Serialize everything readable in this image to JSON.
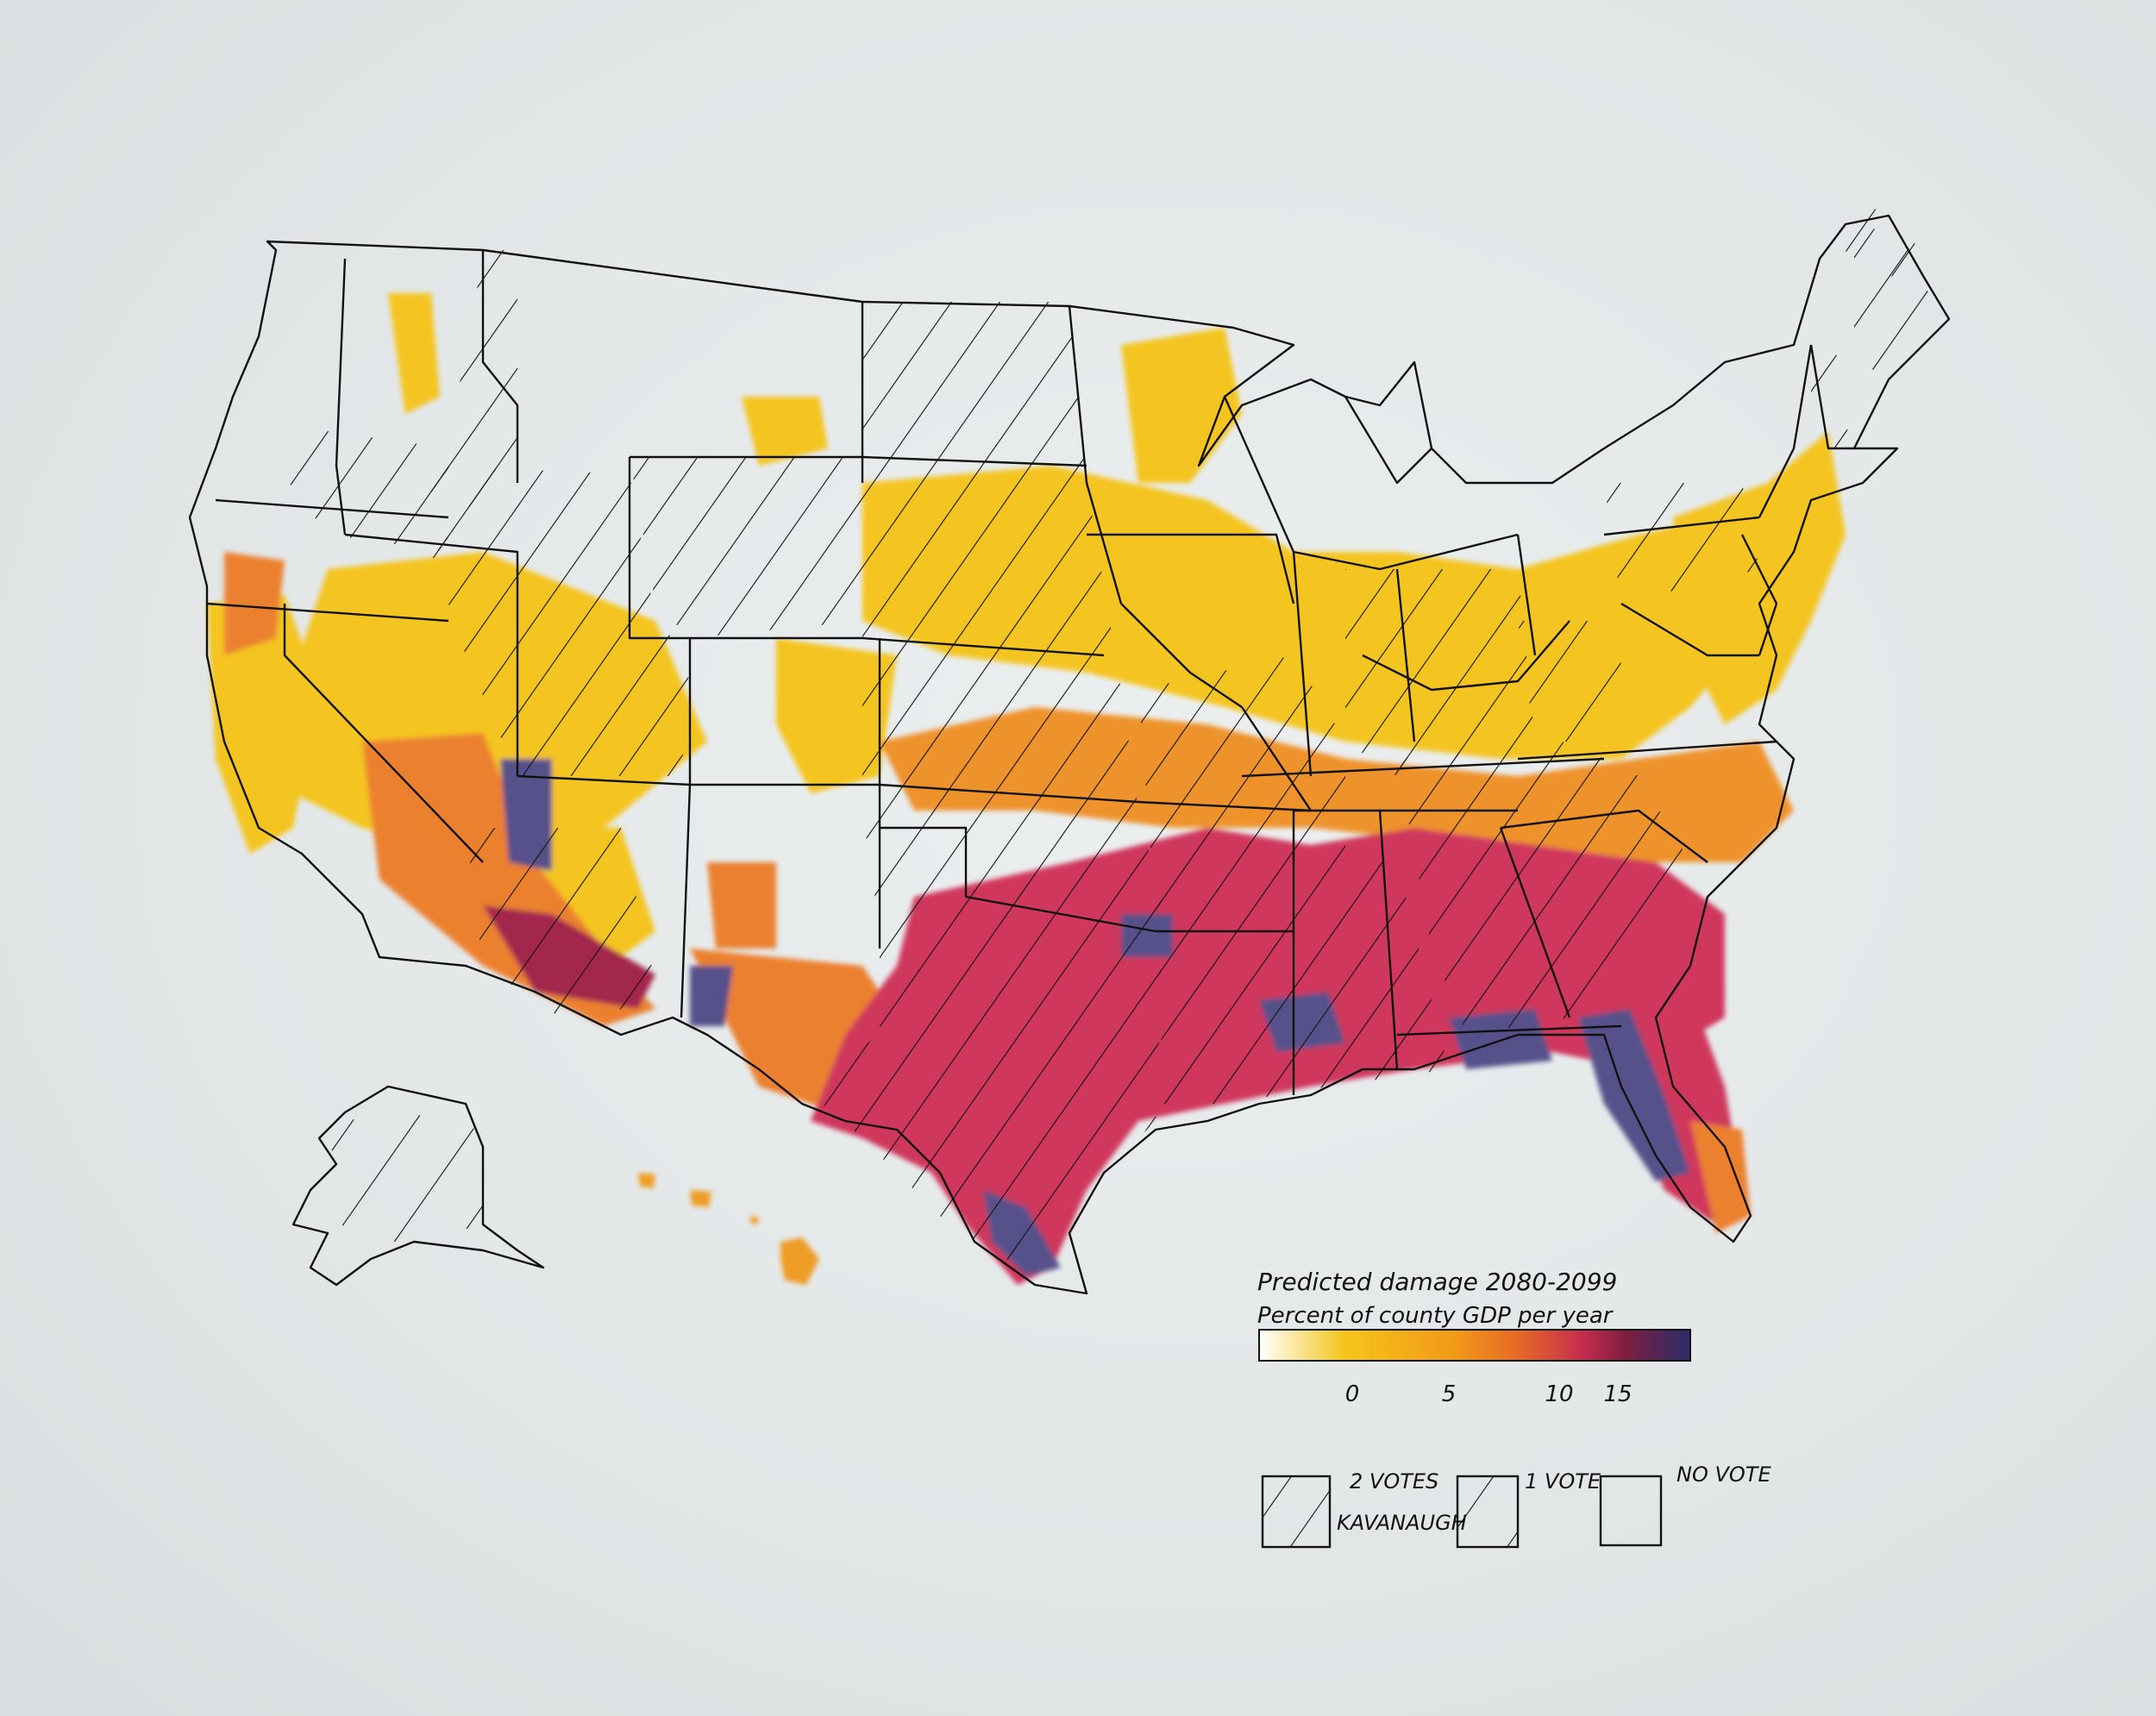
{
  "legend": {
    "title": "Predicted damage 2080-2099",
    "subtitle": "Percent of county GDP per year",
    "scale_ticks": [
      "0",
      "5",
      "10",
      "15"
    ],
    "scale_colors": [
      "#ffffff",
      "#f3c21a",
      "#f2a018",
      "#e8741f",
      "#c83050",
      "#8a1f40",
      "#2f2f6e"
    ],
    "votes": {
      "two_votes_line1": "2 VOTES",
      "two_votes_line2": "KAVANAUGH",
      "one_vote": "1 VOTE",
      "no_vote": "NO VOTE"
    }
  },
  "colors": {
    "yellow": "#f5c316",
    "gold": "#f2a91b",
    "orange": "#ec7b26",
    "red": "#cf2f55",
    "maroon": "#a01f45",
    "purple": "#4f4a86",
    "ink": "#111111"
  }
}
